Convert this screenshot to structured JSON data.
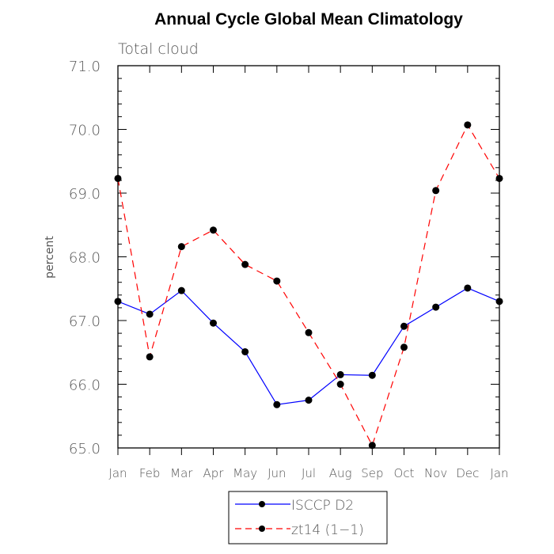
{
  "chart_data": {
    "type": "line",
    "title": "Annual Cycle Global Mean Climatology",
    "subtitle": "Total cloud",
    "xlabel": "",
    "ylabel": "percent",
    "categories": [
      "Jan",
      "Feb",
      "Mar",
      "Apr",
      "May",
      "Jun",
      "Jul",
      "Aug",
      "Sep",
      "Oct",
      "Nov",
      "Dec",
      "Jan"
    ],
    "ylim": [
      65.0,
      71.0
    ],
    "yticks": [
      "65.0",
      "66.0",
      "67.0",
      "68.0",
      "69.0",
      "70.0",
      "71.0"
    ],
    "series": [
      {
        "name": "ISCCP D2",
        "color": "#0000ff",
        "dash": "solid",
        "values": [
          67.3,
          67.1,
          67.47,
          66.96,
          66.51,
          65.68,
          65.75,
          66.15,
          66.14,
          66.91,
          67.21,
          67.51,
          67.3
        ]
      },
      {
        "name": "zt14 (1−1)",
        "color": "#ff0000",
        "dash": "dashed",
        "values": [
          69.23,
          66.43,
          68.16,
          68.42,
          67.88,
          67.62,
          66.81,
          66.0,
          65.04,
          66.58,
          69.04,
          70.07,
          69.23
        ]
      }
    ],
    "legend_position": "bottom-center"
  }
}
